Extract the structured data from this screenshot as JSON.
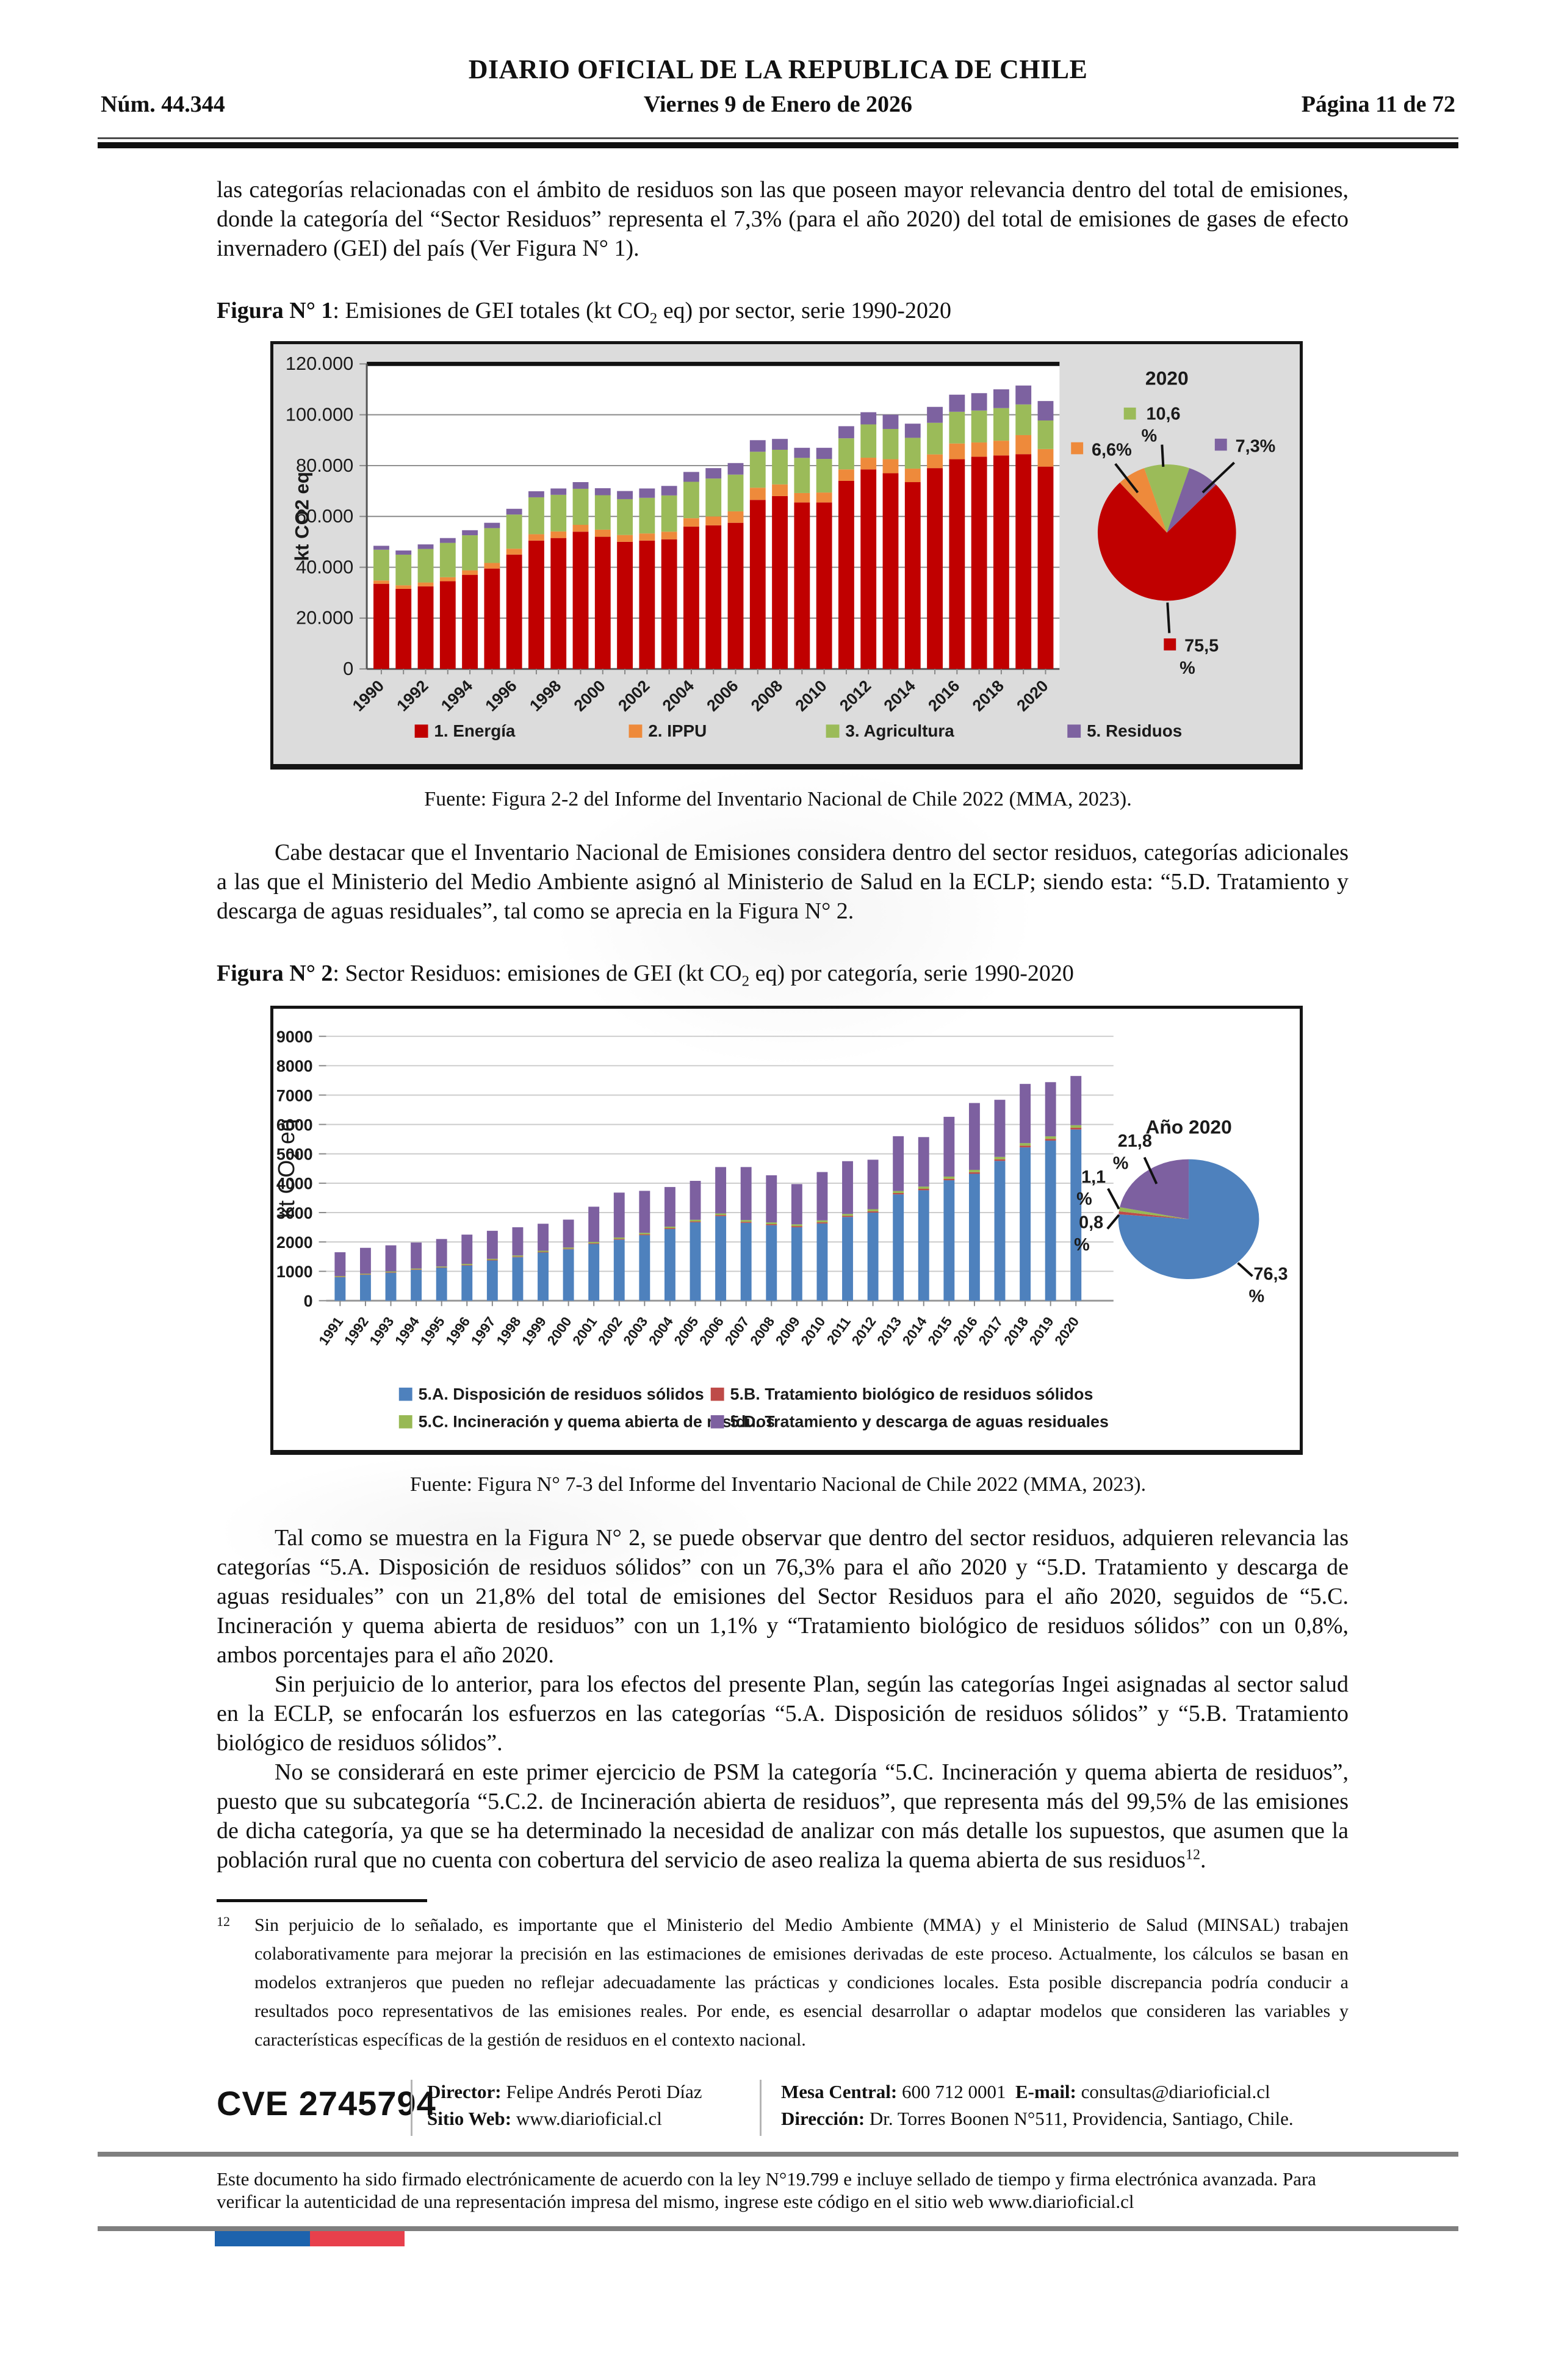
{
  "header": {
    "paper_title": "DIARIO OFICIAL DE LA REPUBLICA DE CHILE",
    "issue_number": "Núm. 44.344",
    "date": "Viernes 9 de Enero de 2026",
    "page_label": "Página 11 de 72"
  },
  "paragraphs": {
    "p1": "las categorías relacionadas con el ámbito de residuos son las que poseen mayor relevancia dentro del total de emisiones, donde la categoría del “Sector Residuos” representa el 7,3% (para el año 2020) del total de emisiones de gases de efecto invernadero (GEI) del país (Ver Figura N° 1).",
    "p2": "Cabe destacar que el Inventario Nacional de Emisiones considera dentro del sector residuos, categorías adicionales a las que el Ministerio del Medio Ambiente asignó al Ministerio de Salud en la ECLP; siendo esta: “5.D. Tratamiento y descarga de aguas residuales”, tal como se aprecia en la Figura N° 2.",
    "p3": "Tal como se muestra en la Figura N° 2, se puede observar que dentro del sector residuos, adquieren relevancia las categorías “5.A. Disposición de residuos sólidos” con un 76,3% para el año 2020 y “5.D. Tratamiento y descarga de aguas residuales” con un 21,8% del total de emisiones del Sector Residuos para el año 2020, seguidos de “5.C. Incineración y quema abierta de residuos” con un 1,1% y “Tratamiento biológico de residuos sólidos” con un 0,8%, ambos porcentajes para el año 2020.",
    "p4": "Sin perjuicio de lo anterior, para los efectos del presente Plan, según las categorías Ingei asignadas al sector salud en la ECLP, se enfocarán los esfuerzos en las categorías “5.A. Disposición de residuos sólidos” y “5.B. Tratamiento biológico de residuos sólidos”.",
    "p5_pre": "No se considerará en este primer ejercicio de PSM la categoría “5.C. Incineración y quema abierta de residuos”, puesto que su subcategoría “5.C.2. de Incineración abierta de residuos”, que representa más del 99,5% de las emisiones de dicha categoría, ya que se ha determinado la necesidad de analizar con más detalle los supuestos, que asumen que la población rural que no cuenta con cobertura del servicio de aseo realiza la quema abierta de sus residuos",
    "p5_sup": "12",
    "p5_post": "."
  },
  "figure1": {
    "title_bold": "Figura N° 1",
    "title_pre": ": Emisiones de GEI totales (kt CO",
    "title_sub": "2",
    "title_post": " eq) por sector, serie 1990-2020",
    "fuente": "Fuente: Figura 2-2 del Informe del Inventario Nacional de Chile 2022 (MMA, 2023)."
  },
  "figure2": {
    "title_bold": "Figura N° 2",
    "title_pre": ": Sector Residuos: emisiones de GEI (kt CO",
    "title_sub": "2",
    "title_post": " eq) por categoría, serie 1990-2020",
    "fuente": "Fuente: Figura N° 7-3 del Informe del Inventario Nacional de Chile 2022 (MMA, 2023)."
  },
  "footnote": {
    "marker": "12",
    "text": "Sin perjuicio de lo señalado, es importante que el Ministerio del Medio Ambiente (MMA) y el Ministerio de Salud (MINSAL) trabajen colaborativamente para mejorar la precisión en las estimaciones de emisiones derivadas de este proceso. Actualmente, los cálculos se basan en modelos extranjeros que pueden no reflejar adecuadamente las prácticas y condiciones locales. Esta posible discrepancia podría conducir a resultados poco representativos de las emisiones reales. Por ende, es esencial desarrollar o adaptar modelos que consideren las variables y características específicas de la gestión de residuos en el contexto nacional."
  },
  "footer": {
    "cve": "CVE 2745794",
    "director_label": "Director:",
    "director": "Felipe Andrés Peroti Díaz",
    "sitio_label": "Sitio Web:",
    "sitio": "www.diarioficial.cl",
    "mesa_label": "Mesa Central:",
    "mesa": "600 712 0001",
    "email_label": "E-mail:",
    "email": "consultas@diarioficial.cl",
    "direccion_label": "Dirección:",
    "direccion": "Dr. Torres Boonen N°511, Providencia, Santiago, Chile.",
    "legal": "Este documento ha sido firmado electrónicamente de acuerdo con la ley N°19.799 e incluye sellado de tiempo y firma electrónica avanzada. Para verificar la autenticidad de una representación impresa del mismo, ingrese este código en el sitio web www.diarioficial.cl"
  },
  "chart_data": [
    {
      "type": "bar",
      "stacked": true,
      "title": "Emisiones de GEI totales (kt CO2 eq) por sector, serie 1990-2020",
      "xlabel": "",
      "ylabel": "kt CO2 eq",
      "ylim": [
        0,
        120000
      ],
      "grid": true,
      "legend_position": "bottom",
      "y_ticks": [
        "0",
        "20.000",
        "40.000",
        "60.000",
        "80.000",
        "100.000",
        "120.000"
      ],
      "categories": [
        "1990",
        "1991",
        "1992",
        "1993",
        "1994",
        "1995",
        "1996",
        "1997",
        "1998",
        "1999",
        "2000",
        "2001",
        "2002",
        "2003",
        "2004",
        "2005",
        "2006",
        "2007",
        "2008",
        "2009",
        "2010",
        "2011",
        "2012",
        "2013",
        "2014",
        "2015",
        "2016",
        "2017",
        "2018",
        "2019",
        "2020"
      ],
      "series": [
        {
          "name": "1. Energía",
          "color": "#C00000",
          "values": [
            33500,
            31500,
            32500,
            34500,
            37000,
            39500,
            45000,
            50500,
            51500,
            54000,
            52000,
            50000,
            50500,
            51000,
            56000,
            56500,
            57500,
            66500,
            68000,
            65500,
            65500,
            74000,
            78500,
            77000,
            73500,
            79000,
            82500,
            83500,
            84000,
            84500,
            79600
          ]
        },
        {
          "name": "2. IPPU",
          "color": "#EE8A3B",
          "values": [
            1300,
            1400,
            1500,
            1600,
            1800,
            2200,
            2300,
            2500,
            2600,
            2700,
            2800,
            2700,
            2800,
            3000,
            3300,
            3500,
            4500,
            4800,
            4600,
            3700,
            3900,
            4500,
            4600,
            5500,
            5300,
            5400,
            6200,
            5600,
            5800,
            7500,
            6900
          ]
        },
        {
          "name": "3. Agricultura",
          "color": "#9BBB59",
          "values": [
            12100,
            12050,
            13200,
            13500,
            13800,
            13700,
            13450,
            14520,
            14400,
            14180,
            13540,
            14100,
            14020,
            14260,
            14330,
            14920,
            14450,
            14150,
            13630,
            13830,
            13220,
            12250,
            13100,
            11900,
            12130,
            12440,
            12470,
            12560,
            12820,
            12060,
            11250
          ]
        },
        {
          "name": "5. Residuos",
          "color": "#7D62A0",
          "values": [
            1550,
            1650,
            1800,
            1890,
            1980,
            2100,
            2250,
            2380,
            2500,
            2620,
            2760,
            3200,
            3680,
            3740,
            3870,
            4080,
            4550,
            4550,
            4270,
            3970,
            4380,
            4750,
            4800,
            5600,
            5570,
            6260,
            6730,
            6840,
            7380,
            7440,
            7650
          ]
        }
      ],
      "pie": {
        "type": "pie",
        "title": "2020",
        "slices": [
          {
            "name": "1. Energía",
            "label": "75,5 %",
            "value": 75.5,
            "color": "#C00000"
          },
          {
            "name": "2. IPPU",
            "label": "6,6%",
            "value": 6.6,
            "color": "#EE8A3B"
          },
          {
            "name": "3. Agricultura",
            "label": "10,6 %",
            "value": 10.6,
            "color": "#9BBB59"
          },
          {
            "name": "5. Residuos",
            "label": "7,3%",
            "value": 7.3,
            "color": "#7D62A0"
          }
        ]
      }
    },
    {
      "type": "bar",
      "stacked": true,
      "title": "Sector Residuos: emisiones de GEI (kt CO2 eq) por categoría, serie 1990-2020",
      "xlabel": "",
      "ylabel": "kt CO2 eq",
      "ylim": [
        0,
        9000
      ],
      "grid": true,
      "legend_position": "bottom",
      "y_ticks": [
        "0",
        "1000",
        "2000",
        "3000",
        "4000",
        "5000",
        "6000",
        "7000",
        "8000",
        "9000"
      ],
      "categories": [
        "1991",
        "1992",
        "1993",
        "1994",
        "1995",
        "1996",
        "1997",
        "1998",
        "1999",
        "2000",
        "2001",
        "2002",
        "2003",
        "2004",
        "2005",
        "2006",
        "2007",
        "2008",
        "2009",
        "2010",
        "2011",
        "2012",
        "2013",
        "2014",
        "2015",
        "2016",
        "2017",
        "2018",
        "2019",
        "2020"
      ],
      "series": [
        {
          "name": "5.A. Disposición de residuos sólidos",
          "color": "#4E81BD",
          "values": [
            800,
            880,
            950,
            1050,
            1120,
            1200,
            1370,
            1480,
            1640,
            1750,
            1930,
            2080,
            2230,
            2440,
            2670,
            2880,
            2650,
            2570,
            2500,
            2630,
            2850,
            3000,
            3620,
            3760,
            4100,
            4320,
            4760,
            5220,
            5450,
            5830
          ]
        },
        {
          "name": "5.B. Tratamiento biológico de residuos sólidos",
          "color": "#BE4B48",
          "values": [
            15,
            15,
            15,
            15,
            15,
            20,
            20,
            20,
            20,
            20,
            25,
            25,
            30,
            30,
            30,
            35,
            35,
            35,
            40,
            40,
            40,
            45,
            45,
            50,
            50,
            55,
            55,
            60,
            60,
            60
          ]
        },
        {
          "name": "5.C. Incineración y quema abierta de residuos",
          "color": "#98B954",
          "values": [
            25,
            25,
            30,
            30,
            30,
            35,
            35,
            40,
            40,
            40,
            45,
            45,
            50,
            50,
            55,
            55,
            60,
            60,
            60,
            65,
            65,
            70,
            70,
            75,
            75,
            80,
            80,
            85,
            85,
            85
          ]
        },
        {
          "name": "5.D. Tratamiento y descarga de aguas residuales",
          "color": "#7D60A0",
          "values": [
            810,
            880,
            890,
            885,
            935,
            995,
            955,
            960,
            920,
            950,
            1200,
            1530,
            1430,
            1350,
            1325,
            1580,
            1805,
            1605,
            1370,
            1645,
            1795,
            1685,
            1865,
            1685,
            2035,
            2275,
            1945,
            2015,
            1845,
            1675
          ]
        }
      ],
      "pie": {
        "type": "pie",
        "title": "Año 2020",
        "slices": [
          {
            "name": "5.A. Disposición de residuos sólidos",
            "label": "76,3 %",
            "value": 76.3,
            "color": "#4E81BD"
          },
          {
            "name": "5.B. Tratamiento biológico de residuos sólidos",
            "label": "0,8 %",
            "value": 0.8,
            "color": "#BE4B48"
          },
          {
            "name": "5.C. Incineración y quema abierta de residuos",
            "label": "1,1 %",
            "value": 1.1,
            "color": "#98B954"
          },
          {
            "name": "5.D. Tratamiento y descarga de aguas residuales",
            "label": "21,8 %",
            "value": 21.8,
            "color": "#7D60A0"
          }
        ]
      }
    }
  ]
}
